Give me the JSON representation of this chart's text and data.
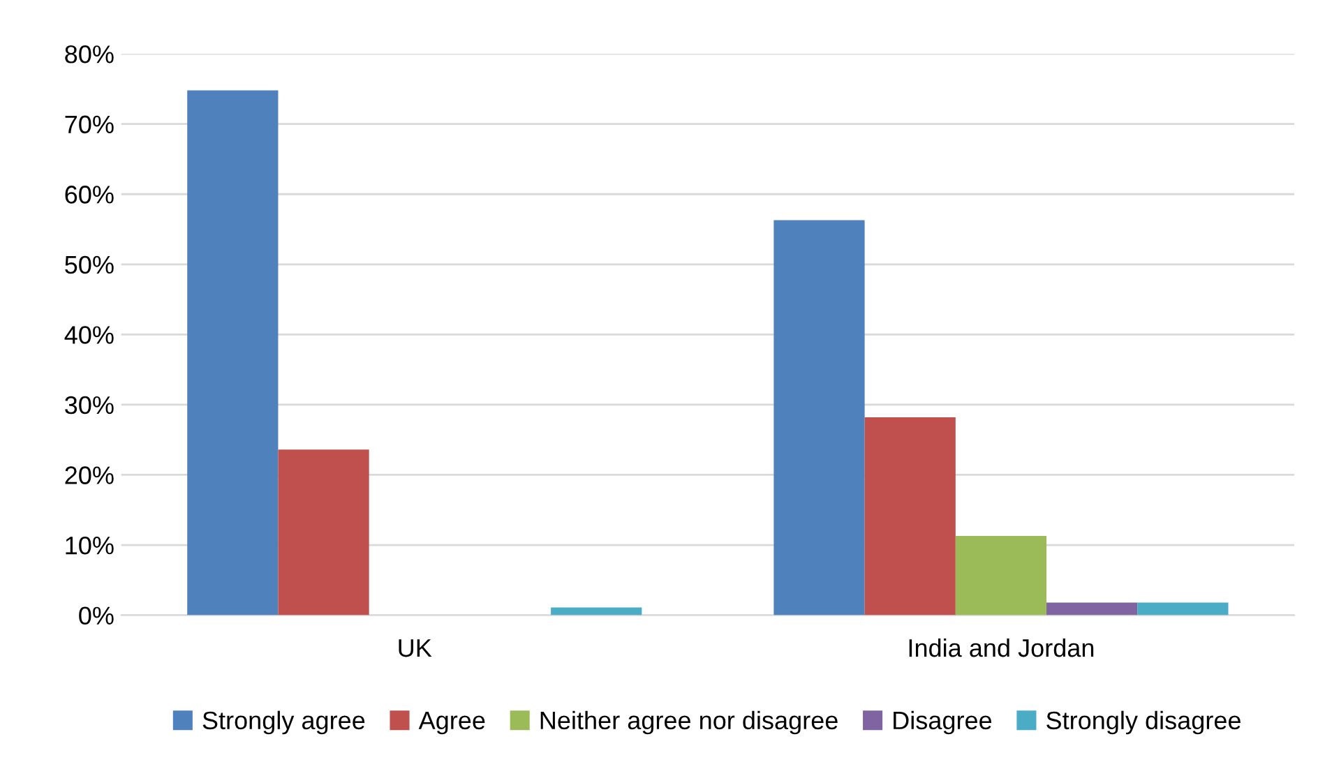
{
  "chart_data": {
    "type": "bar",
    "categories": [
      "UK",
      "India and Jordan"
    ],
    "series": [
      {
        "name": "Strongly agree",
        "color": "#4f81bd",
        "values": [
          74.8,
          56.3
        ]
      },
      {
        "name": "Agree",
        "color": "#c0504d",
        "values": [
          23.6,
          28.2
        ]
      },
      {
        "name": "Neither agree nor disagree",
        "color": "#9bbb59",
        "values": [
          0,
          11.3
        ]
      },
      {
        "name": "Disagree",
        "color": "#8064a2",
        "values": [
          0,
          1.8
        ]
      },
      {
        "name": "Strongly disagree",
        "color": "#4bacc6",
        "values": [
          1.1,
          1.8
        ]
      }
    ],
    "ylim": [
      0,
      80
    ],
    "yticks": [
      {
        "value": 0,
        "label": "0%"
      },
      {
        "value": 10,
        "label": "10%"
      },
      {
        "value": 20,
        "label": "20%"
      },
      {
        "value": 30,
        "label": "30%"
      },
      {
        "value": 40,
        "label": "40%"
      },
      {
        "value": 50,
        "label": "50%"
      },
      {
        "value": 60,
        "label": "60%"
      },
      {
        "value": 70,
        "label": "70%"
      },
      {
        "value": 80,
        "label": "80%"
      }
    ],
    "grid": "y",
    "legend": "bottom"
  }
}
